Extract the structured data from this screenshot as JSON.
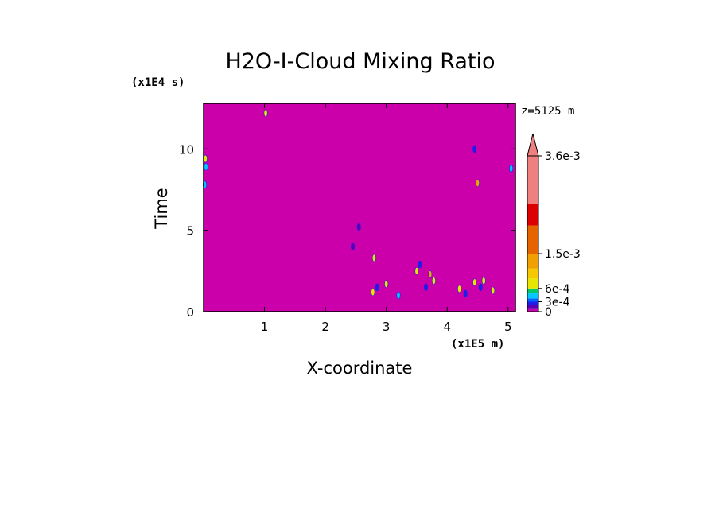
{
  "chart_data": {
    "type": "heatmap",
    "title": "H2O-I-Cloud Mixing Ratio",
    "xlabel": "X-coordinate",
    "ylabel": "Time",
    "x_unit_label": "(x1E5 m)",
    "y_unit_label": "(x1E4 s)",
    "level_label": "z=5125 m",
    "xlim": [
      0,
      5.12
    ],
    "ylim": [
      0,
      12.8
    ],
    "x_ticks": [
      "1",
      "2",
      "3",
      "4",
      "5"
    ],
    "x_tick_values": [
      1,
      2,
      3,
      4,
      5
    ],
    "y_ticks": [
      "0",
      "5",
      "10"
    ],
    "y_tick_values": [
      0,
      5,
      10
    ],
    "background_color": "#cc00aa",
    "colorbar": {
      "labels": [
        "0",
        "3e-4",
        "6e-4",
        "1.5e-3",
        "3.6e-3"
      ],
      "label_values": [
        0,
        0.0003,
        0.0006,
        0.0015,
        0.0036
      ],
      "boundaries": [
        0,
        0.0001,
        0.0002,
        0.0003,
        0.0004,
        0.0005,
        0.0006,
        0.0009,
        0.0012,
        0.0015,
        0.0021,
        0.0027,
        0.0036
      ],
      "colors": [
        "#cc00aa",
        "#5a00b4",
        "#1e1ee6",
        "#0064ff",
        "#00c8ff",
        "#00c864",
        "#e6e600",
        "#f5c800",
        "#f0a000",
        "#e66400",
        "#dc0000",
        "#f08080"
      ],
      "extend": "max"
    },
    "patches": [
      {
        "x": 0.03,
        "y": 9.4,
        "color": "#e6e600"
      },
      {
        "x": 0.04,
        "y": 8.9,
        "color": "#00c8ff"
      },
      {
        "x": 0.02,
        "y": 7.8,
        "color": "#00c8ff"
      },
      {
        "x": 1.02,
        "y": 12.2,
        "color": "#e6e600"
      },
      {
        "x": 2.45,
        "y": 4.0,
        "color": "#5a00b4"
      },
      {
        "x": 2.55,
        "y": 5.2,
        "color": "#5a00b4"
      },
      {
        "x": 2.8,
        "y": 3.3,
        "color": "#e6e600"
      },
      {
        "x": 2.78,
        "y": 1.2,
        "color": "#e6e600"
      },
      {
        "x": 2.85,
        "y": 1.5,
        "color": "#1e1ee6"
      },
      {
        "x": 3.0,
        "y": 1.7,
        "color": "#e6e600"
      },
      {
        "x": 3.2,
        "y": 1.0,
        "color": "#00c8ff"
      },
      {
        "x": 3.5,
        "y": 2.5,
        "color": "#e6e600"
      },
      {
        "x": 3.55,
        "y": 2.9,
        "color": "#1e1ee6"
      },
      {
        "x": 3.65,
        "y": 1.5,
        "color": "#1e1ee6"
      },
      {
        "x": 3.72,
        "y": 2.3,
        "color": "#f0a000"
      },
      {
        "x": 3.78,
        "y": 1.9,
        "color": "#e6e600"
      },
      {
        "x": 4.2,
        "y": 1.4,
        "color": "#e6e600"
      },
      {
        "x": 4.3,
        "y": 1.1,
        "color": "#1e1ee6"
      },
      {
        "x": 4.45,
        "y": 1.8,
        "color": "#e6e600"
      },
      {
        "x": 4.55,
        "y": 1.5,
        "color": "#1e1ee6"
      },
      {
        "x": 4.6,
        "y": 1.9,
        "color": "#e6e600"
      },
      {
        "x": 4.75,
        "y": 1.3,
        "color": "#e6e600"
      },
      {
        "x": 4.45,
        "y": 10.0,
        "color": "#1e1ee6"
      },
      {
        "x": 4.5,
        "y": 7.9,
        "color": "#f0a000"
      },
      {
        "x": 5.05,
        "y": 8.8,
        "color": "#00c8ff"
      }
    ]
  }
}
